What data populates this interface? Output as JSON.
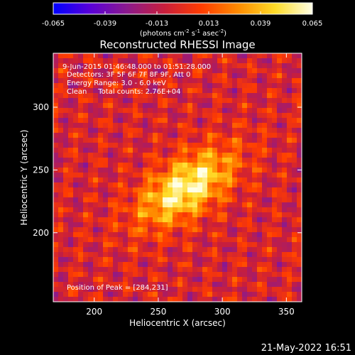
{
  "colorbar": {
    "ticks": [
      "-0.065",
      "-0.039",
      "-0.013",
      "0.013",
      "0.039",
      "0.065"
    ],
    "units_main": "(photons cm",
    "units_exp1": "-2",
    "units_s": " s",
    "units_exp2": "-1",
    "units_asec": " asec",
    "units_exp3": "-2",
    "units_close": ")"
  },
  "info": {
    "line1": "9-Jun-2015 01:46:48.000 to 01:51:28.000",
    "line2": "Detectors: 3F 5F 6F 7F 8F 9F, Att 0",
    "line3": "Energy Range: 3.0 - 6.0 keV",
    "line4": "Clean     Total counts: 2.76E+04",
    "peak": "Position of Peak = [284,231]"
  },
  "footer": {
    "date": "21-May-2022 16:51"
  },
  "colors": {
    "background": "#000000",
    "foreground": "#ffffff",
    "colormap": [
      "#0000ff",
      "#5a00d8",
      "#8c1a8c",
      "#c81e3c",
      "#ff3c00",
      "#ff8c00",
      "#ffdc28",
      "#ffffe6"
    ]
  },
  "chart_data": {
    "type": "heatmap",
    "title": "Reconstructed RHESSI Image",
    "xlabel": "Heliocentric X (arcsec)",
    "ylabel": "Heliocentric Y (arcsec)",
    "xlim": [
      168,
      362
    ],
    "ylim": [
      145,
      343
    ],
    "xticks": [
      200,
      250,
      300,
      350
    ],
    "yticks": [
      200,
      250,
      300
    ],
    "clim": [
      -0.065,
      0.065
    ],
    "colorbar_label": "photons cm^-2 s^-1 asec^-2",
    "peak": {
      "x": 284,
      "y": 231,
      "value": 0.065
    },
    "source": {
      "x": 272,
      "y": 236,
      "sigma_major": 30,
      "sigma_minor": 15,
      "angle_deg": -35
    }
  }
}
